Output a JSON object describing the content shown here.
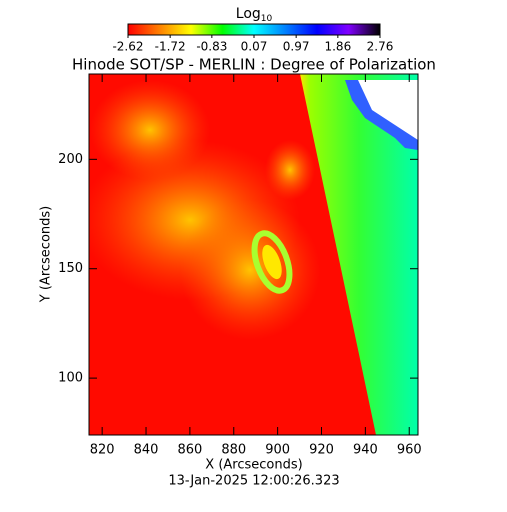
{
  "chart_data": {
    "type": "heatmap",
    "title": "Hinode SOT/SP - MERLIN : Degree of Polarization",
    "colorbar_label": "Log",
    "colorbar_label_sub": "10",
    "clim": [
      -2.62,
      2.76
    ],
    "cticks": [
      -2.62,
      -1.72,
      -0.83,
      0.07,
      0.97,
      1.86,
      2.76
    ],
    "colormap": [
      "#ff0000",
      "#ff8000",
      "#ffff00",
      "#00ff00",
      "#00ffff",
      "#0080ff",
      "#0000ff",
      "#8000ff",
      "#000000"
    ],
    "x_label": "X (Arcseconds)",
    "y_label": "Y (Arcseconds)",
    "xlim": [
      814,
      964
    ],
    "ylim": [
      74,
      239
    ],
    "xticks": [
      820,
      840,
      860,
      880,
      900,
      920,
      940,
      960
    ],
    "yticks": [
      100,
      150,
      200
    ],
    "timestamp": "13-Jan-2025 12:00:26.323"
  }
}
